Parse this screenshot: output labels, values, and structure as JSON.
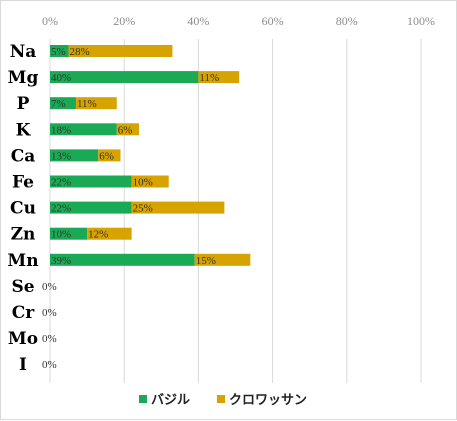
{
  "chart_data": {
    "type": "bar",
    "orientation": "horizontal",
    "stacked": true,
    "categories": [
      "Na",
      "Mg",
      "P",
      "K",
      "Ca",
      "Fe",
      "Cu",
      "Zn",
      "Mn",
      "Se",
      "Cr",
      "Mo",
      "I"
    ],
    "series": [
      {
        "name": "バジル",
        "color": "#1aaa55",
        "values": [
          5,
          40,
          7,
          18,
          13,
          22,
          22,
          10,
          39,
          0,
          0,
          0,
          0
        ]
      },
      {
        "name": "クロワッサン",
        "color": "#d6a300",
        "values": [
          28,
          11,
          11,
          6,
          6,
          10,
          25,
          12,
          15,
          0,
          0,
          0,
          0
        ]
      }
    ],
    "xlim": [
      0,
      100
    ],
    "x_ticks": [
      "0%",
      "20%",
      "40%",
      "60%",
      "80%",
      "100%"
    ],
    "x_axis_position": "top",
    "grid": true,
    "legend_position": "bottom",
    "data_labels": [
      [
        "5%",
        "28%"
      ],
      [
        "40%",
        "11%"
      ],
      [
        "7%",
        "11%"
      ],
      [
        "18%",
        "6%"
      ],
      [
        "13%",
        "6%"
      ],
      [
        "22%",
        "10%"
      ],
      [
        "22%",
        "25%"
      ],
      [
        "10%",
        "12%"
      ],
      [
        "39%",
        "15%"
      ],
      [
        "0%"
      ],
      [
        "0%"
      ],
      [
        "0%"
      ],
      [
        "0%"
      ]
    ]
  }
}
